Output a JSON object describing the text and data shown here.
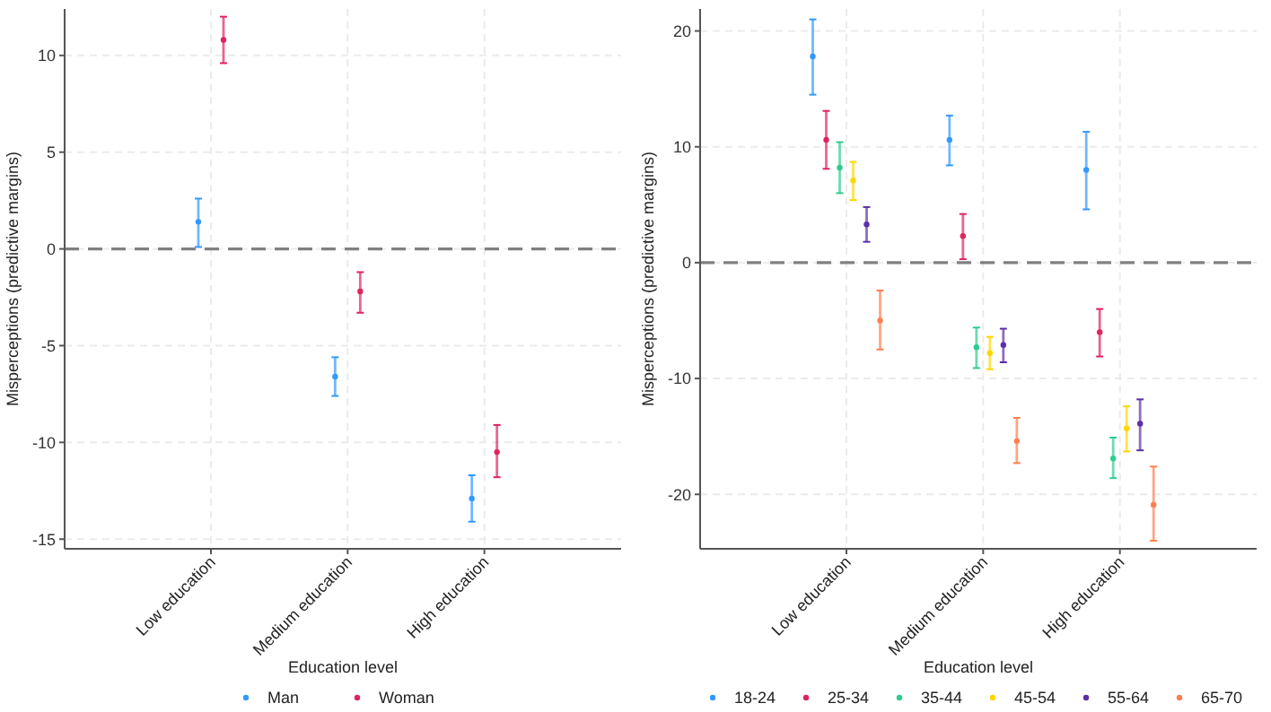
{
  "chart_data": [
    {
      "type": "scatter",
      "xlabel": "Education level",
      "ylabel": "Misperceptions (predictive margins)",
      "categories": [
        "Low education",
        "Medium education",
        "High education"
      ],
      "ylim": [
        -15.5,
        12.4
      ],
      "yticks": [
        -15,
        -10,
        -5,
        0,
        5,
        10
      ],
      "grid": true,
      "legend": "bottom",
      "marker": "circle",
      "ref_lines": [
        {
          "axis": "y",
          "value": 0,
          "color": "#808080",
          "line_style": "dashed"
        }
      ],
      "series": [
        {
          "name": "Man",
          "color": "#3399ff",
          "values": [
            1.4,
            -6.6,
            -12.9
          ],
          "errors": [
            [
              0.1,
              2.6
            ],
            [
              -7.6,
              -5.6
            ],
            [
              -14.1,
              -11.7
            ]
          ]
        },
        {
          "name": "Woman",
          "color": "#e0245e",
          "values": [
            10.8,
            -2.2,
            -10.5
          ],
          "errors": [
            [
              9.6,
              12.0
            ],
            [
              -3.3,
              -1.2
            ],
            [
              -11.8,
              -9.1
            ]
          ]
        }
      ]
    },
    {
      "type": "scatter",
      "xlabel": "Education level",
      "ylabel": "Misperceptions (predictive margins)",
      "categories": [
        "Low education",
        "Medium education",
        "High education"
      ],
      "ylim": [
        -24.7,
        21.9
      ],
      "yticks": [
        -20,
        -10,
        0,
        10,
        20
      ],
      "grid": true,
      "legend": "bottom",
      "marker": "circle",
      "ref_lines": [
        {
          "axis": "y",
          "value": 0,
          "color": "#808080",
          "line_style": "dashed"
        }
      ],
      "series": [
        {
          "name": "18-24",
          "color": "#3399ff",
          "values": [
            17.8,
            10.6,
            8.0
          ],
          "errors": [
            [
              14.5,
              21.0
            ],
            [
              8.4,
              12.7
            ],
            [
              4.6,
              11.3
            ]
          ]
        },
        {
          "name": "25-34",
          "color": "#e0245e",
          "values": [
            10.6,
            2.3,
            -6.0
          ],
          "errors": [
            [
              8.1,
              13.1
            ],
            [
              0.3,
              4.2
            ],
            [
              -8.1,
              -4.0
            ]
          ]
        },
        {
          "name": "35-44",
          "color": "#2ecc8e",
          "values": [
            8.2,
            -7.3,
            -16.9
          ],
          "errors": [
            [
              6.0,
              10.4
            ],
            [
              -9.1,
              -5.6
            ],
            [
              -18.6,
              -15.1
            ]
          ]
        },
        {
          "name": "45-54",
          "color": "#ffd500",
          "values": [
            7.1,
            -7.8,
            -14.3
          ],
          "errors": [
            [
              5.4,
              8.7
            ],
            [
              -9.2,
              -6.4
            ],
            [
              -16.3,
              -12.4
            ]
          ]
        },
        {
          "name": "55-64",
          "color": "#5b2fa8",
          "values": [
            3.3,
            -7.1,
            -13.9
          ],
          "errors": [
            [
              1.8,
              4.8
            ],
            [
              -8.6,
              -5.7
            ],
            [
              -16.2,
              -11.8
            ]
          ]
        },
        {
          "name": "65-70",
          "color": "#ff7f50",
          "values": [
            -5.0,
            -15.4,
            -20.9
          ],
          "errors": [
            [
              -7.5,
              -2.4
            ],
            [
              -17.3,
              -13.4
            ],
            [
              -24.0,
              -17.6
            ]
          ]
        }
      ]
    }
  ]
}
